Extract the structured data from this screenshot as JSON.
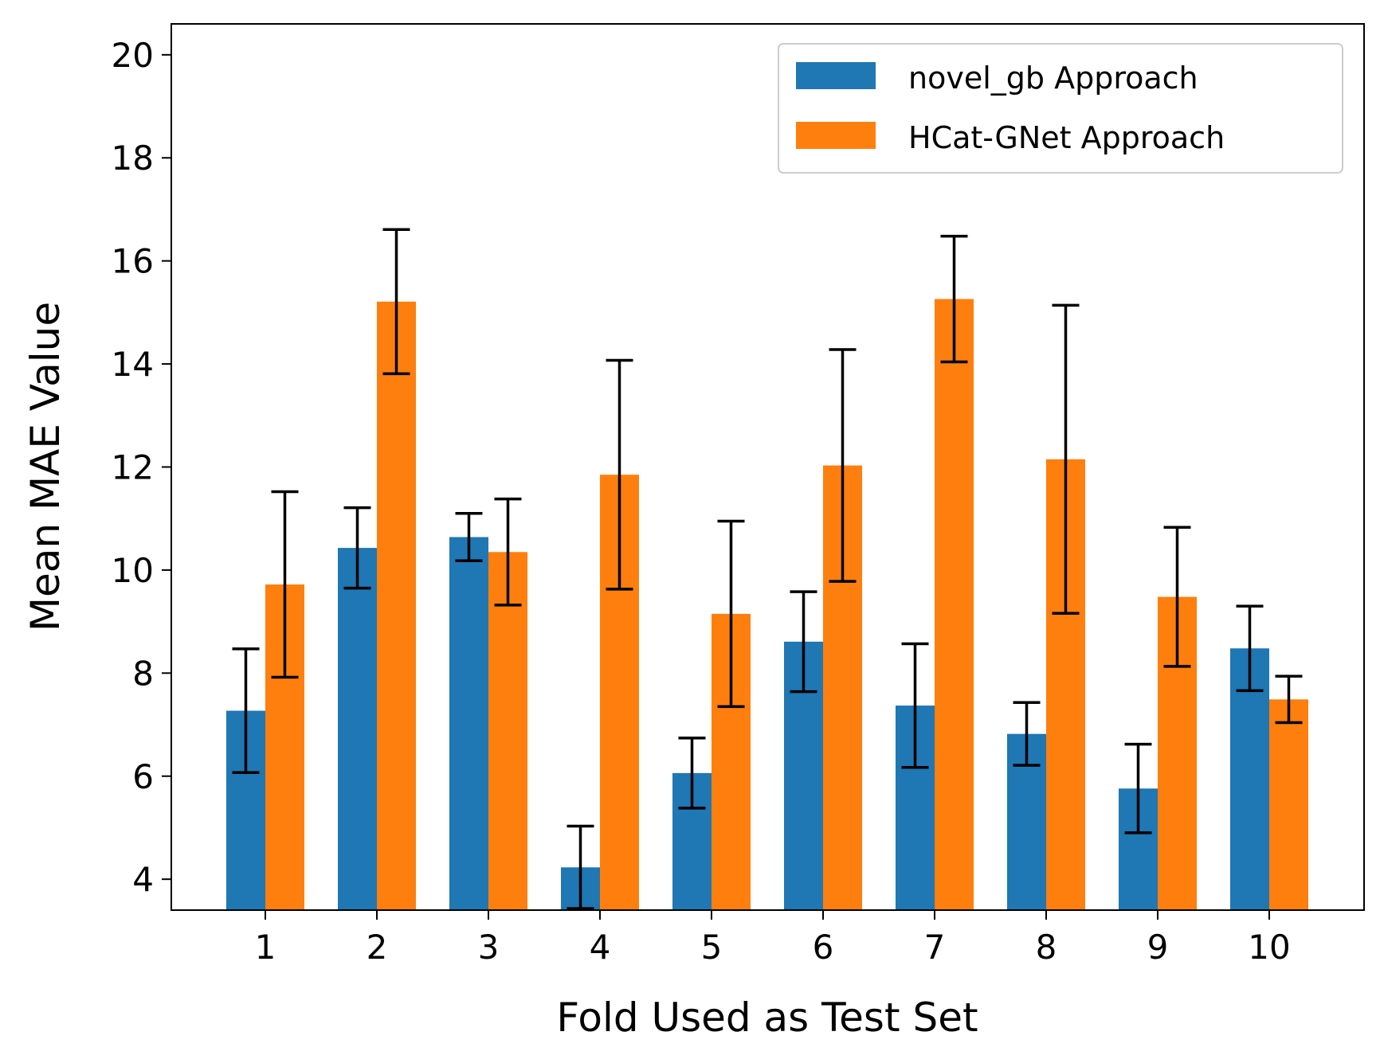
{
  "chart_data": {
    "type": "bar",
    "xlabel": "Fold Used as Test Set",
    "ylabel": "Mean MAE Value",
    "ylim": [
      3.4,
      20.6
    ],
    "yticks": [
      4,
      6,
      8,
      10,
      12,
      14,
      16,
      18,
      20
    ],
    "categories": [
      "1",
      "2",
      "3",
      "4",
      "5",
      "6",
      "7",
      "8",
      "9",
      "10"
    ],
    "series": [
      {
        "name": "novel_gb Approach",
        "color": "#1f77b4",
        "values": [
          7.27,
          10.43,
          10.64,
          4.23,
          6.06,
          8.61,
          7.37,
          6.82,
          5.76,
          8.48
        ],
        "errors": [
          1.2,
          0.78,
          0.46,
          0.8,
          0.68,
          0.97,
          1.2,
          0.61,
          0.86,
          0.82
        ]
      },
      {
        "name": "HCat-GNet Approach",
        "color": "#ff7f0e",
        "values": [
          9.72,
          15.21,
          10.35,
          11.85,
          9.15,
          12.03,
          15.26,
          12.15,
          9.48,
          7.49
        ],
        "errors": [
          1.8,
          1.4,
          1.03,
          2.22,
          1.8,
          2.25,
          1.22,
          2.99,
          1.35,
          0.45
        ]
      }
    ],
    "legend_position": "top-right"
  }
}
